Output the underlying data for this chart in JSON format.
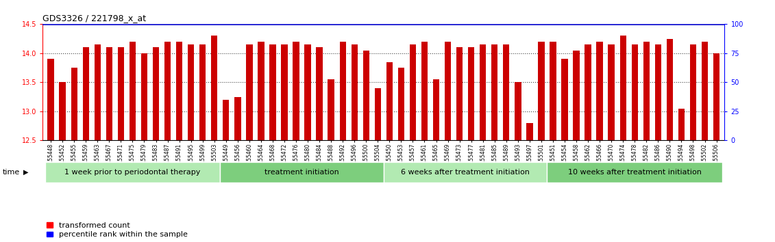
{
  "title": "GDS3326 / 221798_x_at",
  "samples": [
    "GSM155448",
    "GSM155452",
    "GSM155455",
    "GSM155459",
    "GSM155463",
    "GSM155467",
    "GSM155471",
    "GSM155475",
    "GSM155479",
    "GSM155483",
    "GSM155487",
    "GSM155491",
    "GSM155495",
    "GSM155499",
    "GSM155503",
    "GSM155449",
    "GSM155456",
    "GSM155460",
    "GSM155464",
    "GSM155468",
    "GSM155472",
    "GSM155476",
    "GSM155480",
    "GSM155484",
    "GSM155488",
    "GSM155492",
    "GSM155496",
    "GSM155500",
    "GSM155504",
    "GSM155450",
    "GSM155453",
    "GSM155457",
    "GSM155461",
    "GSM155465",
    "GSM155469",
    "GSM155473",
    "GSM155477",
    "GSM155481",
    "GSM155485",
    "GSM155489",
    "GSM155493",
    "GSM155497",
    "GSM155501",
    "GSM155451",
    "GSM155454",
    "GSM155458",
    "GSM155462",
    "GSM155466",
    "GSM155470",
    "GSM155474",
    "GSM155478",
    "GSM155482",
    "GSM155486",
    "GSM155490",
    "GSM155494",
    "GSM155498",
    "GSM155502",
    "GSM155506"
  ],
  "values": [
    13.9,
    13.5,
    13.75,
    14.1,
    14.15,
    14.1,
    14.1,
    14.2,
    14.0,
    14.1,
    14.2,
    14.2,
    14.15,
    14.15,
    14.3,
    13.2,
    13.25,
    14.15,
    14.2,
    14.15,
    14.15,
    14.2,
    14.15,
    14.1,
    13.55,
    14.2,
    14.15,
    14.05,
    13.4,
    13.85,
    13.75,
    14.15,
    14.2,
    13.55,
    14.2,
    14.1,
    14.1,
    14.15,
    14.15,
    14.15,
    13.5,
    12.8,
    14.2,
    14.2,
    13.9,
    14.05,
    14.15,
    14.2,
    14.15,
    14.3,
    14.15,
    14.2,
    14.15,
    14.25,
    13.05,
    14.15,
    14.2,
    14.0
  ],
  "groups": [
    {
      "label": "1 week prior to periodontal therapy",
      "start": 0,
      "end": 15,
      "color": "#b2eab2"
    },
    {
      "label": "treatment initiation",
      "start": 15,
      "end": 29,
      "color": "#7dce7d"
    },
    {
      "label": "6 weeks after treatment initiation",
      "start": 29,
      "end": 43,
      "color": "#b2eab2"
    },
    {
      "label": "10 weeks after treatment initiation",
      "start": 43,
      "end": 58,
      "color": "#7dce7d"
    }
  ],
  "ylim": [
    12.5,
    14.5
  ],
  "yticks_left": [
    12.5,
    13.0,
    13.5,
    14.0,
    14.5
  ],
  "yticks_right": [
    0,
    25,
    50,
    75,
    100
  ],
  "bar_color": "#cc0000",
  "percentile_color": "#0000cc",
  "dotted_line_color": "#444444",
  "dotted_lines": [
    13.0,
    13.5,
    14.0
  ],
  "background_color": "#ffffff",
  "plot_bg_color": "#ffffff",
  "title_fontsize": 9,
  "label_fontsize": 5.5,
  "group_fontsize": 8,
  "legend_fontsize": 8,
  "time_fontsize": 8
}
